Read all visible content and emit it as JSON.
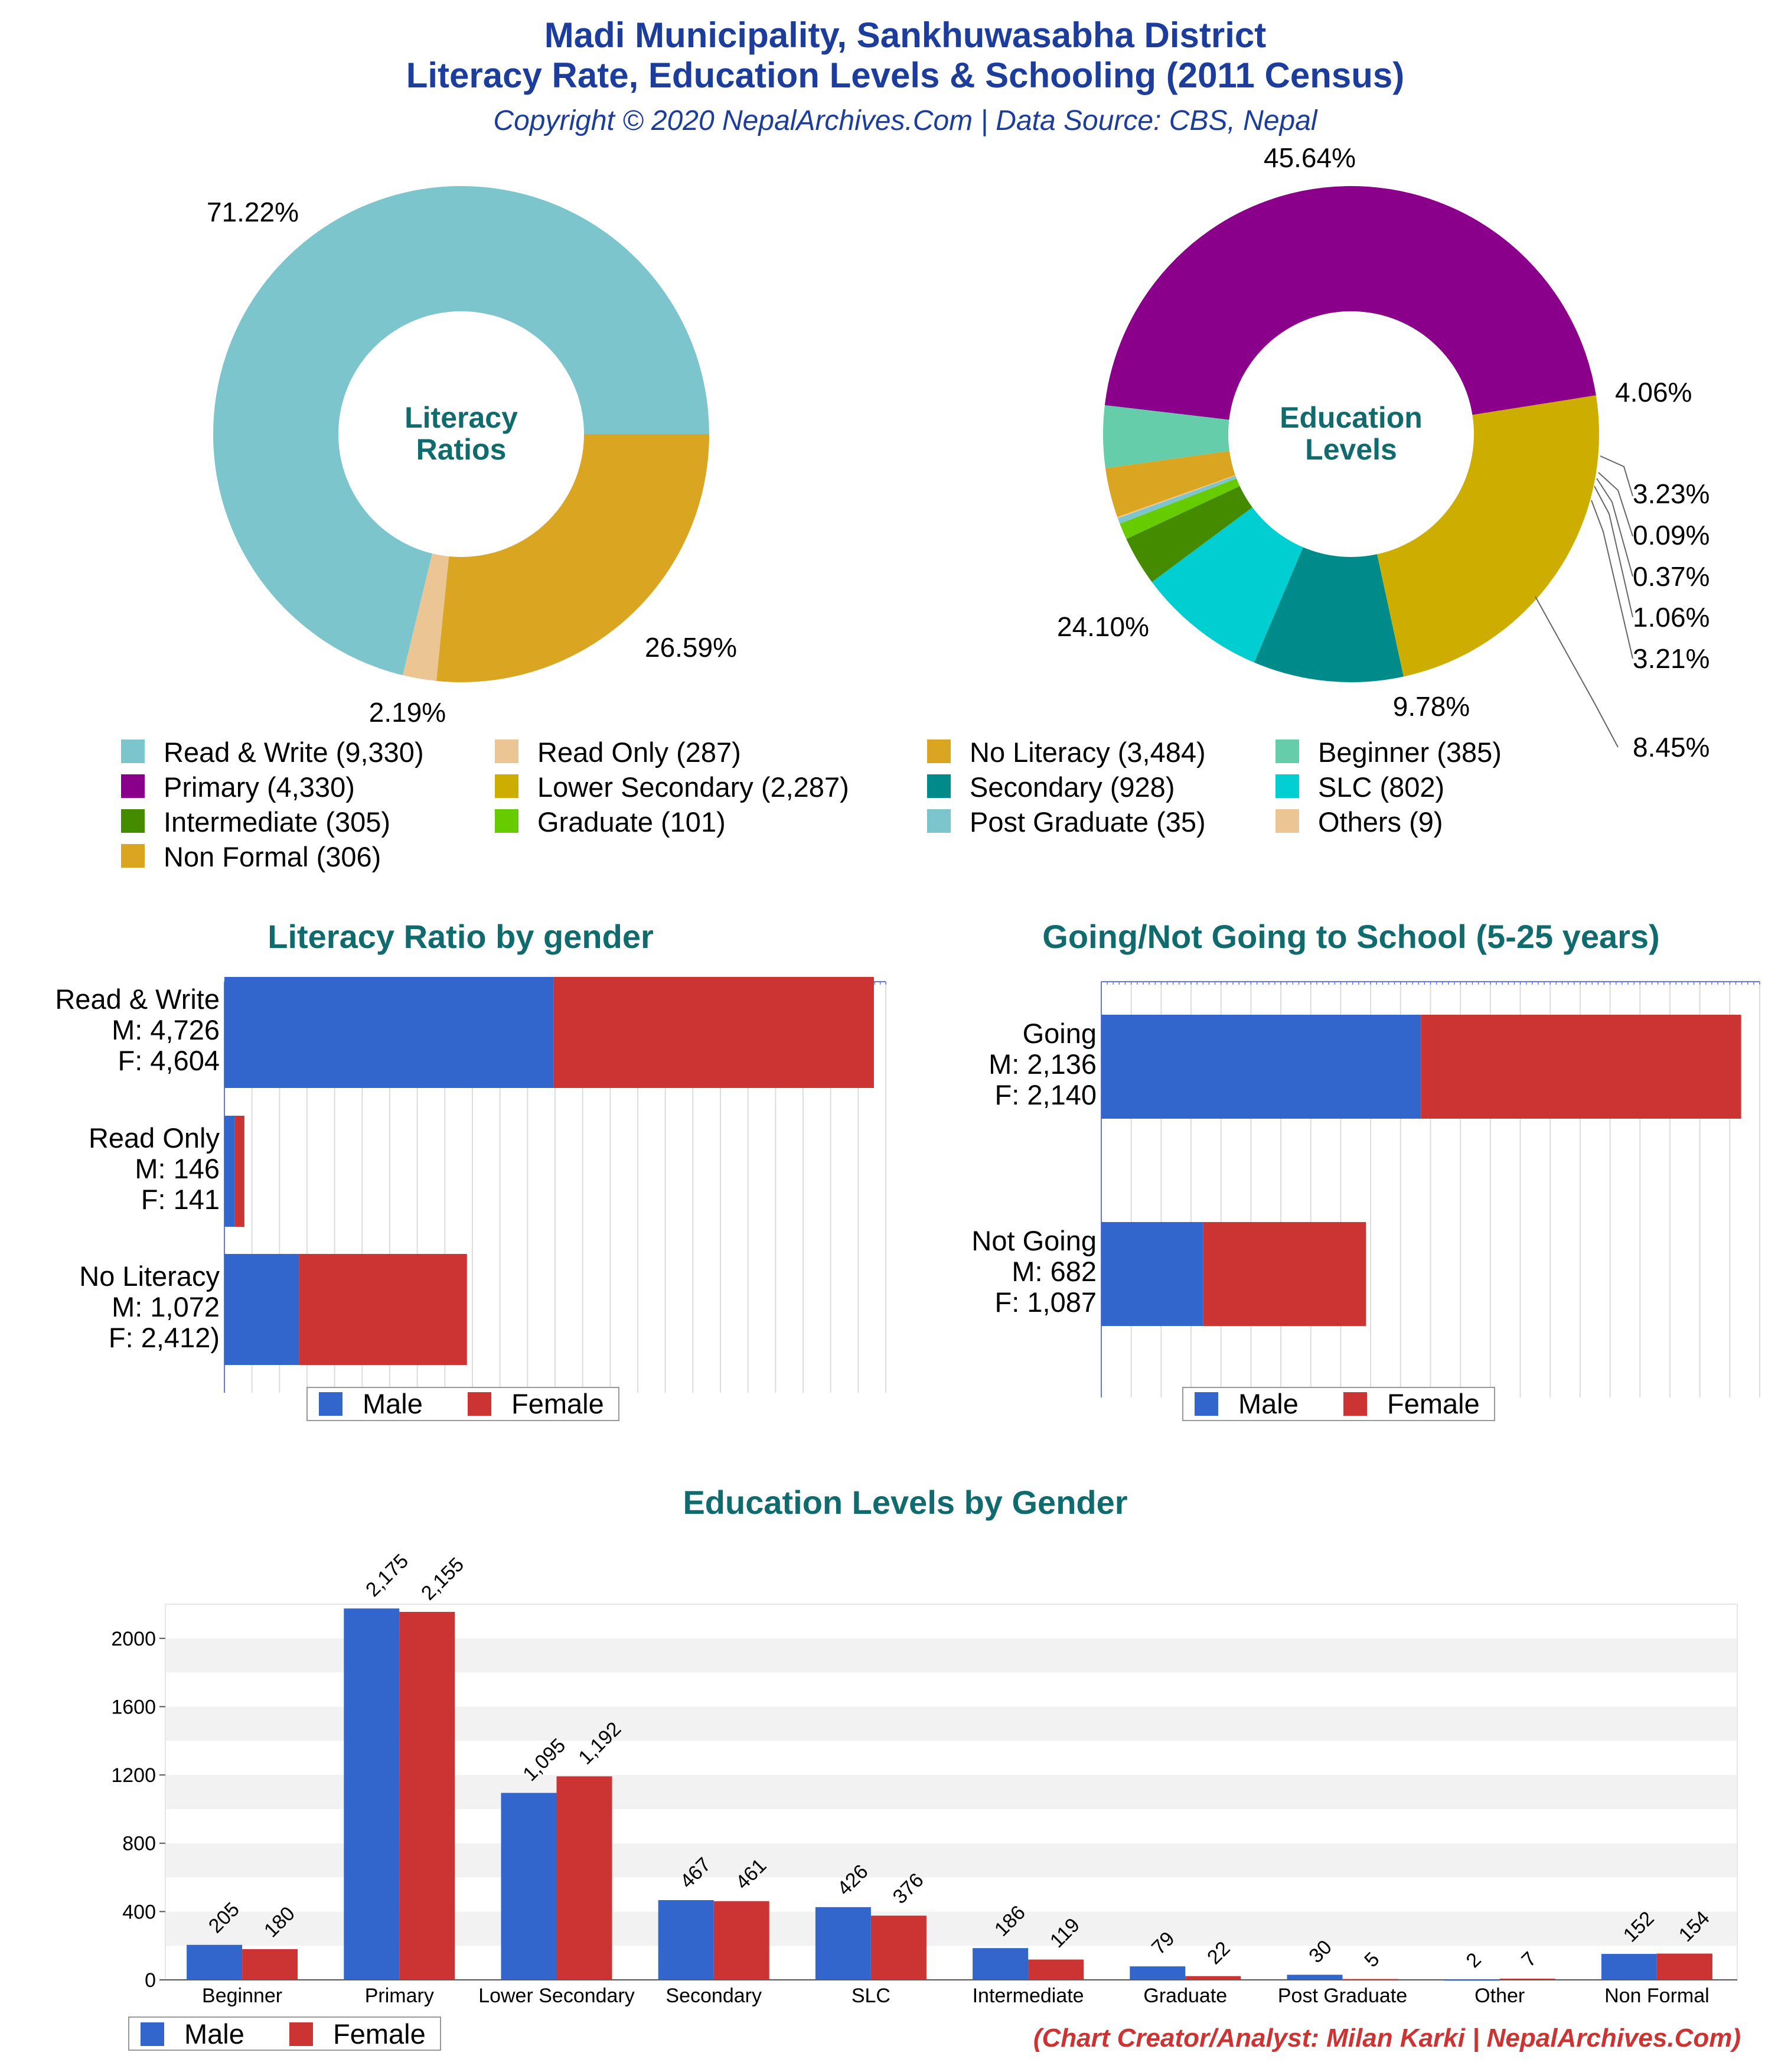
{
  "header": {
    "title_line1": "Madi Municipality, Sankhuwasabha District",
    "title_line2": "Literacy Rate, Education Levels & Schooling (2011 Census)",
    "subtitle": "Copyright © 2020 NepalArchives.Com | Data Source: CBS, Nepal"
  },
  "colors": {
    "male": "#3366cc",
    "female": "#cc3333",
    "title_blue": "#1c3d9b",
    "section_teal": "#0f6b6e"
  },
  "chart_data": [
    {
      "type": "pie",
      "center_label": [
        "Literacy",
        "Ratios"
      ],
      "slices": [
        {
          "label": "Read & Write",
          "value": 9330,
          "percent_label": "71.22%",
          "color": "#7cc5cc"
        },
        {
          "label": "Read Only",
          "value": 287,
          "percent_label": "2.19%",
          "color": "#ecc594"
        },
        {
          "label": "No Literacy",
          "value": 3484,
          "percent_label": "26.59%",
          "color": "#daa521"
        }
      ]
    },
    {
      "type": "pie",
      "center_label": [
        "Education",
        "Levels"
      ],
      "slices": [
        {
          "label": "Primary",
          "value": 4330,
          "percent_label": "45.64%",
          "color": "#8b008b"
        },
        {
          "label": "Beginner",
          "value": 385,
          "percent_label": "4.06%",
          "color": "#66cdaa"
        },
        {
          "label": "Non Formal",
          "value": 306,
          "percent_label": "3.23%",
          "color": "#daa521"
        },
        {
          "label": "Others",
          "value": 9,
          "percent_label": "0.09%",
          "color": "#ecc594"
        },
        {
          "label": "Post Graduate",
          "value": 35,
          "percent_label": "0.37%",
          "color": "#7cc5cc"
        },
        {
          "label": "Graduate",
          "value": 101,
          "percent_label": "1.06%",
          "color": "#66cc00"
        },
        {
          "label": "Intermediate",
          "value": 305,
          "percent_label": "3.21%",
          "color": "#458b00"
        },
        {
          "label": "SLC",
          "value": 802,
          "percent_label": "8.45%",
          "color": "#00ced1"
        },
        {
          "label": "Secondary",
          "value": 928,
          "percent_label": "9.78%",
          "color": "#008b8b"
        },
        {
          "label": "Lower Secondary",
          "value": 2287,
          "percent_label": "24.10%",
          "color": "#ccad00"
        }
      ]
    },
    {
      "type": "bar",
      "orientation": "horizontal",
      "stacked": true,
      "title": "Literacy Ratio by gender",
      "categories": [
        {
          "lines": [
            "Read & Write",
            "M: 4,726",
            "F: 4,604"
          ]
        },
        {
          "lines": [
            "Read Only",
            "M: 146",
            "F: 141"
          ]
        },
        {
          "lines": [
            "No Literacy",
            "M: 1,072",
            "F: 2,412)"
          ]
        }
      ],
      "series": [
        {
          "name": "Male",
          "values": [
            4726,
            146,
            1072
          ]
        },
        {
          "name": "Female",
          "values": [
            4604,
            141,
            2412
          ]
        }
      ],
      "xlim": [
        0,
        9500
      ]
    },
    {
      "type": "bar",
      "orientation": "horizontal",
      "stacked": true,
      "title": "Going/Not Going to School (5-25 years)",
      "categories": [
        {
          "lines": [
            "Going",
            "M: 2,136",
            "F: 2,140"
          ]
        },
        {
          "lines": [
            "Not Going",
            "M: 682",
            "F: 1,087"
          ]
        }
      ],
      "series": [
        {
          "name": "Male",
          "values": [
            2136,
            682
          ]
        },
        {
          "name": "Female",
          "values": [
            2140,
            1087
          ]
        }
      ],
      "xlim": [
        0,
        4400
      ]
    },
    {
      "type": "bar",
      "orientation": "vertical",
      "title": "Education Levels by Gender",
      "categories": [
        "Beginner",
        "Primary",
        "Lower Secondary",
        "Secondary",
        "SLC",
        "Intermediate",
        "Graduate",
        "Post Graduate",
        "Other",
        "Non Formal"
      ],
      "series": [
        {
          "name": "Male",
          "values": [
            205,
            2175,
            1095,
            467,
            426,
            186,
            79,
            30,
            2,
            152
          ],
          "labels": [
            "205",
            "2,175",
            "1,095",
            "467",
            "426",
            "186",
            "79",
            "30",
            "2",
            "152"
          ]
        },
        {
          "name": "Female",
          "values": [
            180,
            2155,
            1192,
            461,
            376,
            119,
            22,
            5,
            7,
            154
          ],
          "labels": [
            "180",
            "2,155",
            "1,192",
            "461",
            "376",
            "119",
            "22",
            "5",
            "7",
            "154"
          ]
        }
      ],
      "ylim": [
        0,
        2200
      ],
      "yticks": [
        0,
        400,
        800,
        1200,
        1600,
        2000
      ],
      "ytick_labels": [
        "0",
        "400",
        "800",
        "1200",
        "1600",
        "2000"
      ]
    }
  ],
  "top_legend": [
    {
      "label": "Read & Write (9,330)",
      "color": "#7cc5cc"
    },
    {
      "label": "Read Only (287)",
      "color": "#ecc594"
    },
    {
      "label": "No Literacy (3,484)",
      "color": "#daa521"
    },
    {
      "label": "Beginner (385)",
      "color": "#66cdaa"
    },
    {
      "label": "Primary (4,330)",
      "color": "#8b008b"
    },
    {
      "label": "Lower Secondary (2,287)",
      "color": "#ccad00"
    },
    {
      "label": "Secondary (928)",
      "color": "#008b8b"
    },
    {
      "label": "SLC (802)",
      "color": "#00ced1"
    },
    {
      "label": "Intermediate (305)",
      "color": "#458b00"
    },
    {
      "label": "Graduate (101)",
      "color": "#66cc00"
    },
    {
      "label": "Post Graduate (35)",
      "color": "#7cc5cc"
    },
    {
      "label": "Others (9)",
      "color": "#ecc594"
    },
    {
      "label": "Non Formal (306)",
      "color": "#daa521"
    }
  ],
  "legend_labels": {
    "male": "Male",
    "female": "Female"
  },
  "footer": {
    "credit": "(Chart Creator/Analyst: Milan Karki | NepalArchives.Com)"
  }
}
